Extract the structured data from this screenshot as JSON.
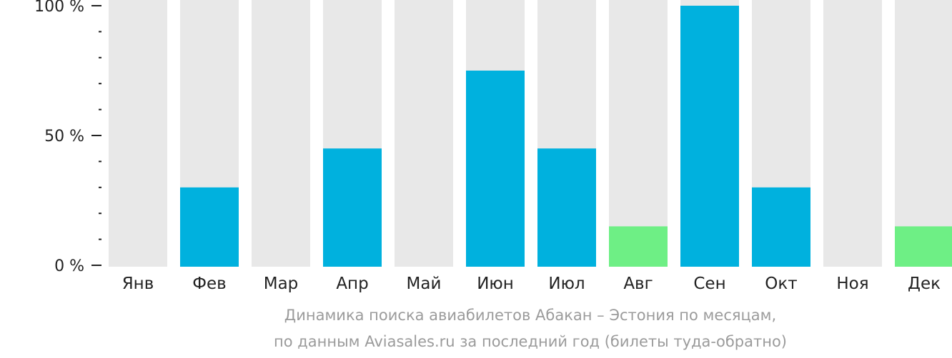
{
  "colors": {
    "background_bar": "#e8e8e8",
    "bar_default": "#00b1de",
    "bar_low": "#6eef85",
    "axis": "#222222",
    "caption": "#9b9b9b"
  },
  "caption": {
    "line1": "Динамика поиска авиабилетов Абакан – Эстония по месяцам,",
    "line2": "по данным Aviasales.ru за последний год (билеты туда-обратно)"
  },
  "chart_data": {
    "type": "bar",
    "categories": [
      "Янв",
      "Фев",
      "Мар",
      "Апр",
      "Май",
      "Июн",
      "Июл",
      "Авг",
      "Сен",
      "Окт",
      "Ноя",
      "Дек"
    ],
    "values": [
      0,
      30,
      0,
      45,
      0,
      75,
      45,
      15,
      100,
      30,
      0,
      15
    ],
    "highlight": [
      false,
      false,
      false,
      false,
      false,
      false,
      false,
      true,
      false,
      false,
      false,
      true
    ],
    "ylim": [
      0,
      100
    ],
    "y_ticks": [
      {
        "value": 0,
        "label": "0 %"
      },
      {
        "value": 50,
        "label": "50 %"
      },
      {
        "value": 100,
        "label": "100 %"
      }
    ],
    "y_minor_tick_step": 10,
    "grid": false,
    "title": "",
    "xlabel": "",
    "ylabel": ""
  }
}
